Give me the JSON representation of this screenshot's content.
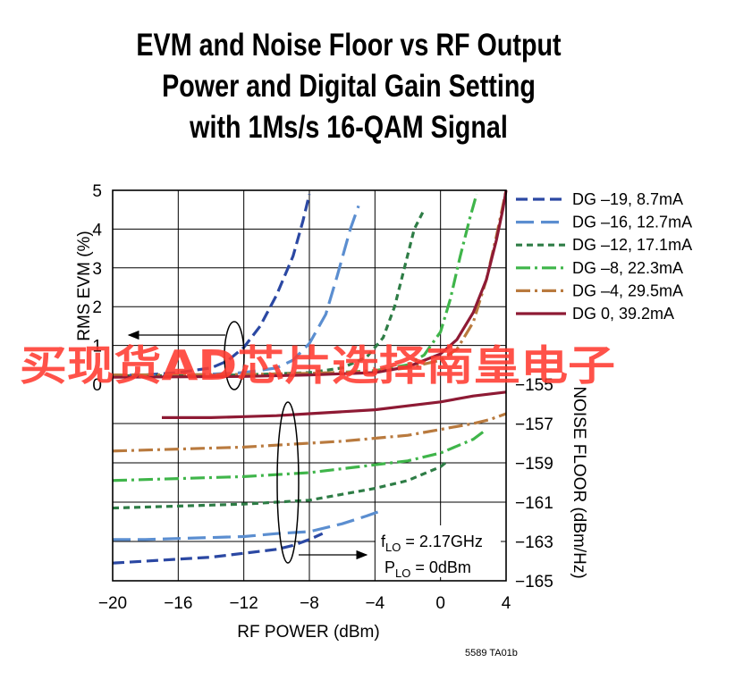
{
  "title_lines": [
    "EVM and Noise Floor vs RF Output",
    "Power and Digital Gain Setting",
    "with 1Ms/s 16-QAM Signal"
  ],
  "watermark": "买现货AD芯片选择南皇电子",
  "figure_id": "5589 TA01b",
  "annotation": {
    "flo_prefix": "f",
    "flo_sub": "LO",
    "flo_value": " = 2.17GHz",
    "plo_prefix": "P",
    "plo_sub": "LO",
    "plo_value": " = 0dBm"
  },
  "chart_data": {
    "type": "line",
    "xlabel": "RF POWER (dBm)",
    "ylabel_left": "RMS EVM (%)",
    "ylabel_right": "NOISE FLOOR (dBm/Hz)",
    "x_ticks": [
      -20,
      -16,
      -12,
      -8,
      -4,
      0,
      4
    ],
    "x_tick_labels": [
      "−20",
      "−16",
      "−12",
      "−8",
      "−4",
      "0",
      "4"
    ],
    "xlim": [
      -20,
      4
    ],
    "evm_ticks": [
      0,
      1,
      2,
      3,
      4,
      5
    ],
    "evm_tick_labels": [
      "0",
      "1",
      "2",
      "3",
      "4",
      "5"
    ],
    "evm_lim": [
      0,
      5
    ],
    "noise_ticks": [
      -165,
      -163,
      -161,
      -159,
      -157,
      -155
    ],
    "noise_tick_labels": [
      "−165",
      "−163",
      "−161",
      "−159",
      "−157",
      "−155"
    ],
    "noise_lim": [
      -165,
      -155
    ],
    "grid": true,
    "legend_position": "right",
    "series": [
      {
        "name": "DG –19, 8.7mA",
        "color": "#2b48a3",
        "dash": "13,6",
        "evm": [
          [
            -20,
            0.22
          ],
          [
            -18,
            0.24
          ],
          [
            -16,
            0.3
          ],
          [
            -14,
            0.42
          ],
          [
            -13,
            0.6
          ],
          [
            -12,
            0.95
          ],
          [
            -11,
            1.5
          ],
          [
            -10,
            2.3
          ],
          [
            -9,
            3.3
          ],
          [
            -8.4,
            4.2
          ],
          [
            -8,
            4.9
          ]
        ],
        "noise": [
          [
            -20,
            -164.1
          ],
          [
            -18,
            -164
          ],
          [
            -16,
            -163.9
          ],
          [
            -14,
            -163.8
          ],
          [
            -12,
            -163.6
          ],
          [
            -10,
            -163.4
          ],
          [
            -9,
            -163.2
          ],
          [
            -8,
            -162.9
          ],
          [
            -7.2,
            -162.6
          ]
        ]
      },
      {
        "name": "DG –16, 12.7mA",
        "color": "#5b8ed0",
        "dash": "20,8",
        "evm": [
          [
            -20,
            0.2
          ],
          [
            -16,
            0.22
          ],
          [
            -12,
            0.3
          ],
          [
            -10,
            0.42
          ],
          [
            -9,
            0.62
          ],
          [
            -8,
            1.05
          ],
          [
            -7,
            1.8
          ],
          [
            -6.3,
            2.8
          ],
          [
            -5.5,
            4.0
          ],
          [
            -5,
            4.6
          ]
        ],
        "noise": [
          [
            -20,
            -162.9
          ],
          [
            -18,
            -162.9
          ],
          [
            -16,
            -162.85
          ],
          [
            -14,
            -162.8
          ],
          [
            -12,
            -162.75
          ],
          [
            -10,
            -162.6
          ],
          [
            -8,
            -162.5
          ],
          [
            -6,
            -162.1
          ],
          [
            -4.5,
            -161.7
          ],
          [
            -3.5,
            -161.4
          ]
        ]
      },
      {
        "name": "DG –12, 17.1mA",
        "color": "#2e7d46",
        "dash": "7,5",
        "evm": [
          [
            -20,
            0.22
          ],
          [
            -16,
            0.22
          ],
          [
            -12,
            0.24
          ],
          [
            -8,
            0.3
          ],
          [
            -6,
            0.42
          ],
          [
            -4.5,
            0.7
          ],
          [
            -3.5,
            1.2
          ],
          [
            -2.8,
            2.0
          ],
          [
            -2.2,
            3.0
          ],
          [
            -1.6,
            4.0
          ],
          [
            -1,
            4.5
          ]
        ],
        "noise": [
          [
            -20,
            -161.3
          ],
          [
            -18,
            -161.25
          ],
          [
            -16,
            -161.2
          ],
          [
            -14,
            -161.15
          ],
          [
            -12,
            -161.1
          ],
          [
            -10,
            -161.0
          ],
          [
            -8,
            -160.9
          ],
          [
            -6,
            -160.6
          ],
          [
            -4,
            -160.3
          ],
          [
            -2,
            -159.9
          ],
          [
            0,
            -159.2
          ],
          [
            0.3,
            -159.0
          ]
        ]
      },
      {
        "name": "DG –8, 22.3mA",
        "color": "#3fb54a",
        "dash": "16,5,3,5",
        "evm": [
          [
            -20,
            0.22
          ],
          [
            -12,
            0.23
          ],
          [
            -8,
            0.27
          ],
          [
            -4,
            0.35
          ],
          [
            -2,
            0.5
          ],
          [
            -1,
            0.75
          ],
          [
            0,
            1.35
          ],
          [
            0.6,
            2.2
          ],
          [
            1.2,
            3.3
          ],
          [
            1.8,
            4.3
          ],
          [
            2.2,
            4.9
          ]
        ],
        "noise": [
          [
            -20,
            -159.9
          ],
          [
            -18,
            -159.85
          ],
          [
            -16,
            -159.8
          ],
          [
            -14,
            -159.75
          ],
          [
            -12,
            -159.7
          ],
          [
            -10,
            -159.6
          ],
          [
            -8,
            -159.5
          ],
          [
            -6,
            -159.3
          ],
          [
            -4,
            -159.1
          ],
          [
            -2,
            -158.9
          ],
          [
            0,
            -158.5
          ],
          [
            2,
            -157.8
          ],
          [
            2.8,
            -157.3
          ]
        ]
      },
      {
        "name": "DG –4, 29.5mA",
        "color": "#b97a3e",
        "dash": "16,5,3,5",
        "evm": [
          [
            -20,
            0.24
          ],
          [
            -12,
            0.25
          ],
          [
            -8,
            0.28
          ],
          [
            -4,
            0.33
          ],
          [
            -2,
            0.42
          ],
          [
            0,
            0.62
          ],
          [
            1,
            0.9
          ],
          [
            2,
            1.6
          ],
          [
            2.8,
            2.7
          ],
          [
            3.4,
            3.8
          ],
          [
            4,
            5.0
          ]
        ],
        "noise": [
          [
            -20,
            -158.4
          ],
          [
            -18,
            -158.35
          ],
          [
            -16,
            -158.3
          ],
          [
            -14,
            -158.25
          ],
          [
            -12,
            -158.2
          ],
          [
            -10,
            -158.1
          ],
          [
            -8,
            -158.0
          ],
          [
            -6,
            -157.9
          ],
          [
            -4,
            -157.75
          ],
          [
            -2,
            -157.6
          ],
          [
            0,
            -157.3
          ],
          [
            2,
            -157.0
          ],
          [
            3,
            -156.8
          ],
          [
            4,
            -156.5
          ]
        ]
      },
      {
        "name": "DG 0, 39.2mA",
        "color": "#8e1a34",
        "dash": "",
        "evm": [
          [
            -20,
            0.18
          ],
          [
            -12,
            0.2
          ],
          [
            -8,
            0.24
          ],
          [
            -4,
            0.3
          ],
          [
            -2,
            0.45
          ],
          [
            0,
            0.78
          ],
          [
            1,
            1.15
          ],
          [
            2,
            1.85
          ],
          [
            2.8,
            2.7
          ],
          [
            3.4,
            3.7
          ],
          [
            3.8,
            4.5
          ],
          [
            4,
            5.0
          ]
        ],
        "noise": [
          [
            -17,
            -156.7
          ],
          [
            -14,
            -156.7
          ],
          [
            -12,
            -156.65
          ],
          [
            -10,
            -156.6
          ],
          [
            -8,
            -156.5
          ],
          [
            -6,
            -156.4
          ],
          [
            -4,
            -156.3
          ],
          [
            -2,
            -156.1
          ],
          [
            0,
            -155.9
          ],
          [
            2,
            -155.6
          ],
          [
            4,
            -155.4
          ]
        ]
      }
    ]
  }
}
